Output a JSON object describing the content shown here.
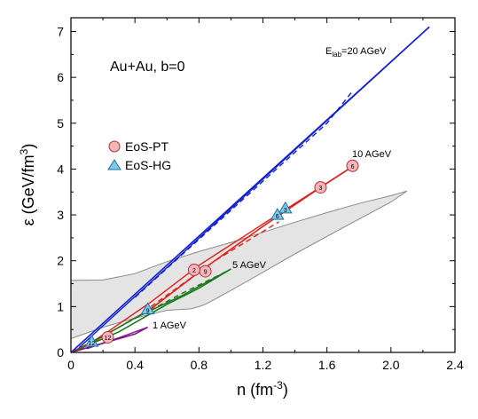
{
  "chart_data": {
    "type": "line",
    "title": "",
    "system_label": "Au+Au, b=0",
    "xlabel": "n (fm⁻³)",
    "ylabel": "ε (GeV/fm³)",
    "xlim": [
      0,
      2.4
    ],
    "ylim": [
      0,
      7.3
    ],
    "xticks": [
      0,
      0.4,
      0.8,
      1.2,
      1.6,
      2.0,
      2.4
    ],
    "xtick_labels": [
      "0",
      "0.4",
      "0.8",
      "1.2",
      "1.6",
      "2.0",
      "2.4"
    ],
    "yticks": [
      0,
      1,
      2,
      3,
      4,
      5,
      6,
      7
    ],
    "ytick_labels": [
      "0",
      "1",
      "2",
      "3",
      "4",
      "5",
      "6",
      "7"
    ],
    "legend": {
      "placement": "left",
      "entries": [
        {
          "label": "EoS-PT",
          "marker": "circle",
          "color": "#f4b6b8"
        },
        {
          "label": "EoS-HG",
          "marker": "triangle",
          "color": "#7fc8e8"
        }
      ]
    },
    "shaded_region": {
      "color": "#e4e4e4",
      "upper": [
        [
          0,
          1.57
        ],
        [
          0.2,
          1.58
        ],
        [
          0.4,
          1.72
        ],
        [
          0.6,
          1.98
        ],
        [
          0.8,
          2.2
        ],
        [
          1.0,
          2.4
        ],
        [
          1.2,
          2.62
        ],
        [
          1.4,
          2.84
        ],
        [
          1.6,
          3.05
        ],
        [
          1.8,
          3.25
        ],
        [
          2.0,
          3.42
        ],
        [
          2.1,
          3.52
        ]
      ],
      "lower": [
        [
          0,
          0.3
        ],
        [
          0.2,
          0.55
        ],
        [
          0.4,
          0.75
        ],
        [
          0.6,
          0.92
        ],
        [
          0.75,
          0.95
        ],
        [
          0.8,
          1.0
        ],
        [
          0.84,
          1.05
        ],
        [
          0.9,
          1.16
        ],
        [
          1.1,
          1.55
        ],
        [
          1.4,
          2.15
        ],
        [
          1.7,
          2.72
        ],
        [
          2.0,
          3.28
        ],
        [
          2.1,
          3.52
        ]
      ]
    },
    "series": [
      {
        "energy_label": "E_lab=20 AGeV",
        "color": "#1020d0",
        "solid_outbound": [
          [
            0,
            0
          ],
          [
            2.24,
            7.1
          ]
        ],
        "solid_return": [
          [
            2.24,
            7.1
          ],
          [
            1.2,
            3.78
          ],
          [
            0.6,
            1.85
          ],
          [
            0.3,
            0.9
          ],
          [
            0.05,
            0.1
          ]
        ],
        "dashed": [
          [
            0.4,
            1.2
          ],
          [
            1.0,
            3.1
          ],
          [
            1.6,
            5.0
          ],
          [
            1.76,
            5.7
          ]
        ],
        "markers": []
      },
      {
        "energy_label": "10 AGeV",
        "color": "#e0201a",
        "solid_outbound": [
          [
            0,
            0
          ],
          [
            0.2,
            0.35
          ],
          [
            0.5,
            0.95
          ],
          [
            0.8,
            1.75
          ],
          [
            1.2,
            2.75
          ],
          [
            1.56,
            3.6
          ],
          [
            1.78,
            4.1
          ]
        ],
        "solid_return": [
          [
            1.78,
            4.1
          ],
          [
            1.2,
            2.8
          ],
          [
            0.8,
            1.9
          ],
          [
            0.5,
            1.1
          ],
          [
            0.2,
            0.38
          ],
          [
            0.05,
            0.05
          ]
        ],
        "dashed": [
          [
            0.5,
            1.0
          ],
          [
            0.9,
            2.0
          ],
          [
            1.3,
            2.85
          ]
        ],
        "markers": [
          {
            "x": 1.76,
            "y": 4.07,
            "marker": "circle",
            "label": "6"
          },
          {
            "x": 1.56,
            "y": 3.6,
            "marker": "circle",
            "label": "3"
          },
          {
            "x": 0.84,
            "y": 1.77,
            "marker": "circle",
            "label": "9"
          },
          {
            "x": 0.77,
            "y": 1.8,
            "marker": "circle",
            "label": "2"
          },
          {
            "x": 0.23,
            "y": 0.33,
            "marker": "circle",
            "label": "12"
          },
          {
            "x": 1.34,
            "y": 3.12,
            "marker": "triangle",
            "label": "3"
          },
          {
            "x": 1.29,
            "y": 2.98,
            "marker": "triangle",
            "label": "6"
          }
        ]
      },
      {
        "energy_label": "5 AGeV",
        "color": "#1a7a1a",
        "solid_outbound": [
          [
            0,
            0
          ],
          [
            0.3,
            0.45
          ],
          [
            0.6,
            1.05
          ],
          [
            0.8,
            1.4
          ],
          [
            1.0,
            1.82
          ]
        ],
        "solid_return": [
          [
            1.0,
            1.82
          ],
          [
            0.7,
            1.25
          ],
          [
            0.4,
            0.75
          ],
          [
            0.1,
            0.15
          ]
        ],
        "dashed": [
          [
            0.3,
            0.55
          ],
          [
            0.7,
            1.3
          ],
          [
            0.98,
            1.78
          ]
        ],
        "markers": [
          {
            "x": 0.48,
            "y": 0.92,
            "marker": "triangle",
            "label": "9"
          }
        ]
      },
      {
        "energy_label": "1 AGeV",
        "color": "#80108a",
        "solid_outbound": [
          [
            0,
            0
          ],
          [
            0.2,
            0.2
          ],
          [
            0.4,
            0.4
          ],
          [
            0.48,
            0.55
          ]
        ],
        "solid_return": [
          [
            0.48,
            0.55
          ],
          [
            0.3,
            0.32
          ],
          [
            0.1,
            0.08
          ]
        ],
        "dashed": [],
        "markers": [
          {
            "x": 0.13,
            "y": 0.21,
            "marker": "triangle",
            "label": "12"
          }
        ]
      }
    ]
  }
}
